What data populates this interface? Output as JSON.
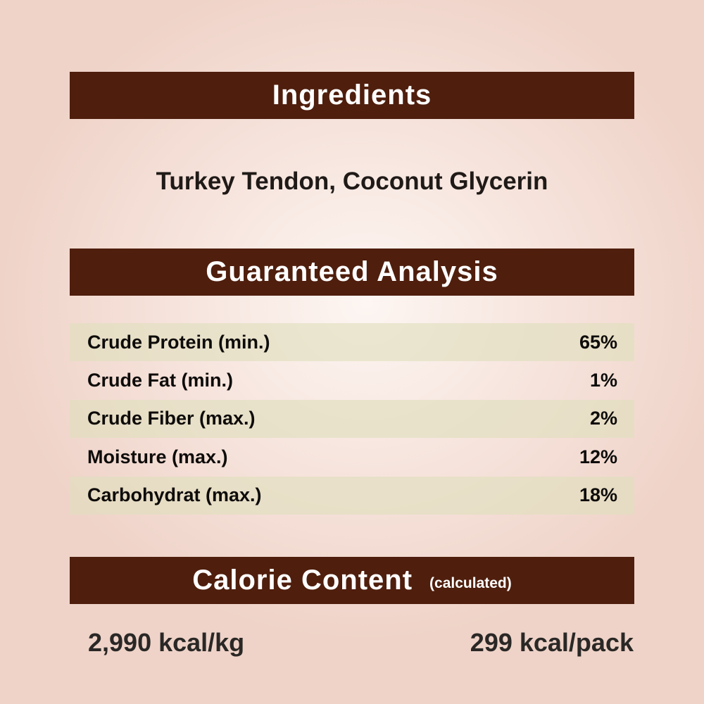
{
  "ingredients": {
    "title": "Ingredients",
    "text": "Turkey Tendon, Coconut Glycerin"
  },
  "analysis": {
    "title": "Guaranteed Analysis",
    "rows": [
      {
        "label": "Crude Protein (min.)",
        "value": "65%"
      },
      {
        "label": "Crude Fat (min.)",
        "value": "1%"
      },
      {
        "label": "Crude Fiber (max.)",
        "value": "2%"
      },
      {
        "label": "Moisture (max.)",
        "value": "12%"
      },
      {
        "label": "Carbohydrat (max.)",
        "value": "18%"
      }
    ]
  },
  "calorie": {
    "title": "Calorie Content",
    "subtitle": "(calculated)",
    "per_kg": "2,990 kcal/kg",
    "per_pack": "299 kcal/pack"
  },
  "colors": {
    "banner": "#4f1e0d",
    "row_shade": "#e1deBE",
    "background": "#efd3c8"
  }
}
